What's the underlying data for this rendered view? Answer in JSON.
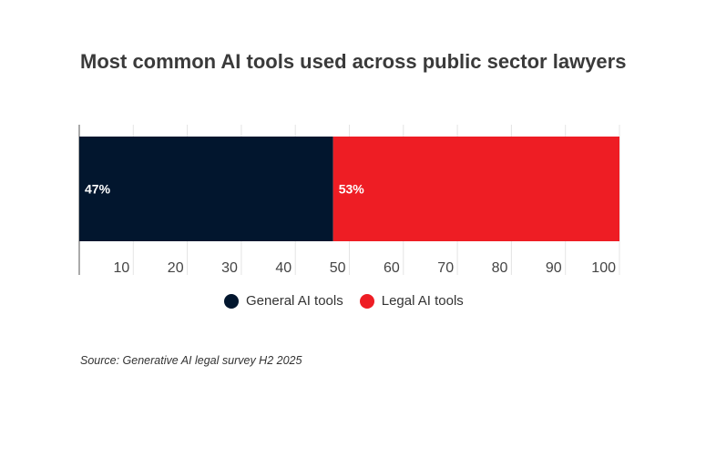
{
  "chart_data": {
    "type": "bar",
    "orientation": "horizontal-stacked",
    "title": "Most common AI tools used across public sector lawyers",
    "series": [
      {
        "name": "General AI tools",
        "values": [
          47
        ],
        "label": "47%",
        "color": "#02162e"
      },
      {
        "name": "Legal AI tools",
        "values": [
          53
        ],
        "label": "53%",
        "color": "#ee1d24"
      }
    ],
    "xlim": [
      0,
      100
    ],
    "x_ticks": [
      "10",
      "20",
      "30",
      "40",
      "50",
      "60",
      "70",
      "80",
      "90",
      "100"
    ],
    "grid": true,
    "legend_position": "bottom-center",
    "source": "Source: Generative AI legal survey H2 2025"
  }
}
